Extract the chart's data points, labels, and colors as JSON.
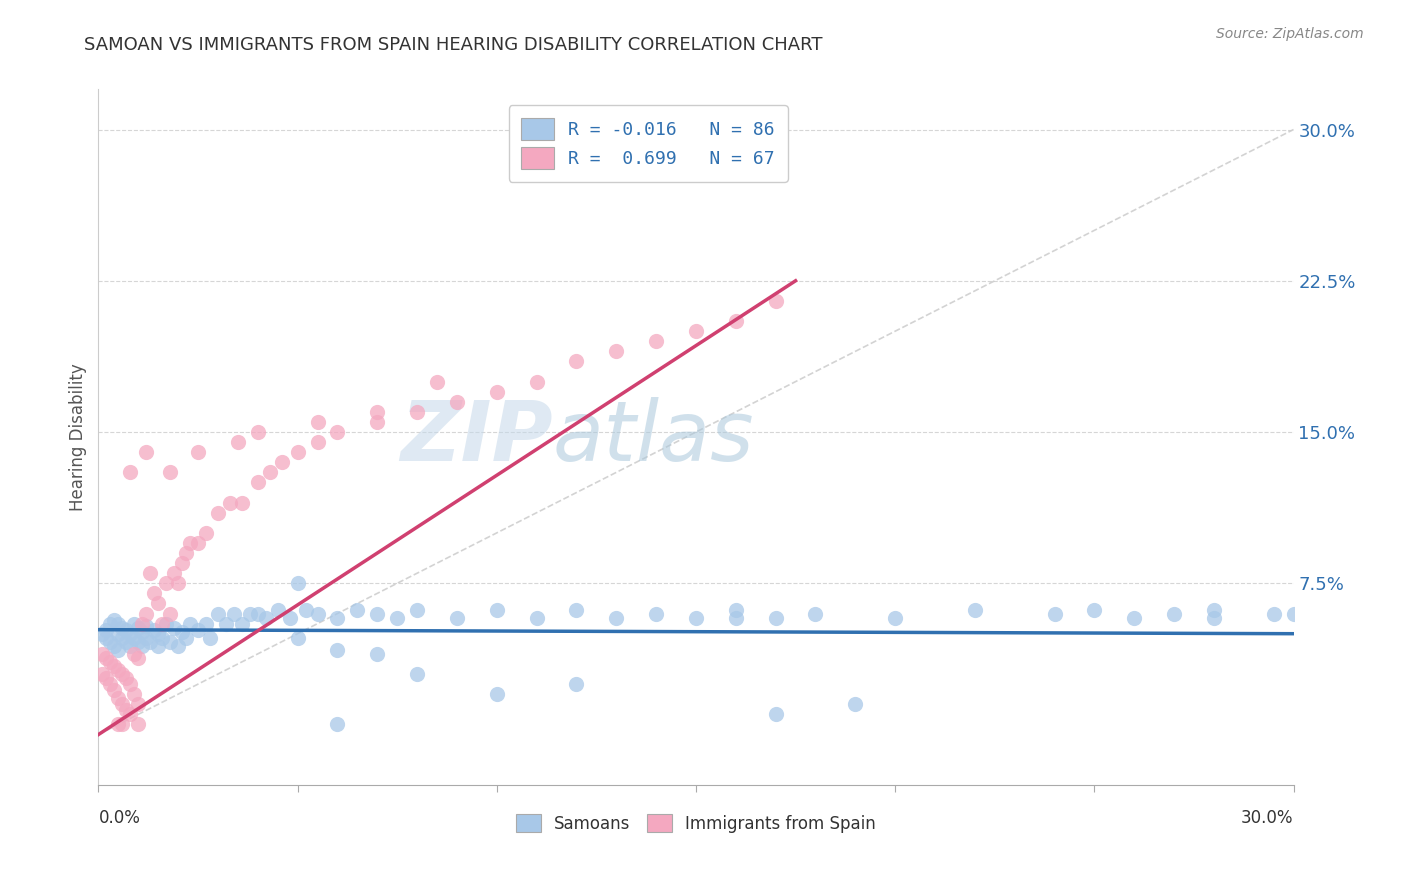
{
  "title": "SAMOAN VS IMMIGRANTS FROM SPAIN HEARING DISABILITY CORRELATION CHART",
  "source": "Source: ZipAtlas.com",
  "ylabel": "Hearing Disability",
  "xmin": 0.0,
  "xmax": 0.3,
  "ymin": -0.025,
  "ymax": 0.32,
  "legend_line1": "R = -0.016   N = 86",
  "legend_line2": "R =  0.699   N = 67",
  "color_blue": "#a8c8e8",
  "color_pink": "#f4a8c0",
  "color_blue_line": "#3070b0",
  "color_pink_line": "#d04070",
  "color_legend_text": "#3070b0",
  "color_dashed": "#c8c8c8",
  "background_color": "#ffffff",
  "watermark_zip": "ZIP",
  "watermark_atlas": "atlas",
  "ytick_positions": [
    0.0,
    0.075,
    0.15,
    0.225,
    0.3
  ],
  "ytick_labels": [
    "",
    "7.5%",
    "15.0%",
    "22.5%",
    "30.0%"
  ],
  "blue_x": [
    0.001,
    0.002,
    0.002,
    0.003,
    0.003,
    0.004,
    0.004,
    0.005,
    0.005,
    0.005,
    0.006,
    0.006,
    0.007,
    0.007,
    0.008,
    0.008,
    0.009,
    0.009,
    0.01,
    0.01,
    0.011,
    0.011,
    0.012,
    0.012,
    0.013,
    0.014,
    0.015,
    0.015,
    0.016,
    0.017,
    0.018,
    0.019,
    0.02,
    0.021,
    0.022,
    0.023,
    0.025,
    0.027,
    0.028,
    0.03,
    0.032,
    0.034,
    0.036,
    0.038,
    0.042,
    0.045,
    0.048,
    0.052,
    0.055,
    0.06,
    0.065,
    0.07,
    0.075,
    0.08,
    0.09,
    0.1,
    0.11,
    0.12,
    0.13,
    0.14,
    0.15,
    0.16,
    0.17,
    0.18,
    0.2,
    0.22,
    0.24,
    0.26,
    0.28,
    0.295,
    0.04,
    0.05,
    0.06,
    0.07,
    0.16,
    0.25,
    0.27,
    0.28,
    0.17,
    0.19,
    0.12,
    0.1,
    0.08,
    0.06,
    0.3,
    0.05
  ],
  "blue_y": [
    0.05,
    0.048,
    0.052,
    0.046,
    0.055,
    0.044,
    0.057,
    0.042,
    0.05,
    0.055,
    0.048,
    0.053,
    0.046,
    0.052,
    0.044,
    0.05,
    0.048,
    0.055,
    0.046,
    0.053,
    0.044,
    0.051,
    0.048,
    0.054,
    0.046,
    0.052,
    0.044,
    0.05,
    0.048,
    0.055,
    0.046,
    0.053,
    0.044,
    0.051,
    0.048,
    0.055,
    0.052,
    0.055,
    0.048,
    0.06,
    0.055,
    0.06,
    0.055,
    0.06,
    0.058,
    0.062,
    0.058,
    0.062,
    0.06,
    0.058,
    0.062,
    0.06,
    0.058,
    0.062,
    0.058,
    0.062,
    0.058,
    0.062,
    0.058,
    0.06,
    0.058,
    0.062,
    0.058,
    0.06,
    0.058,
    0.062,
    0.06,
    0.058,
    0.062,
    0.06,
    0.06,
    0.048,
    0.042,
    0.04,
    0.058,
    0.062,
    0.06,
    0.058,
    0.01,
    0.015,
    0.025,
    0.02,
    0.03,
    0.005,
    0.06,
    0.075
  ],
  "pink_x": [
    0.001,
    0.001,
    0.002,
    0.002,
    0.003,
    0.003,
    0.004,
    0.004,
    0.005,
    0.005,
    0.006,
    0.006,
    0.007,
    0.007,
    0.008,
    0.008,
    0.009,
    0.009,
    0.01,
    0.01,
    0.011,
    0.012,
    0.013,
    0.014,
    0.015,
    0.016,
    0.017,
    0.018,
    0.019,
    0.02,
    0.021,
    0.022,
    0.023,
    0.025,
    0.027,
    0.03,
    0.033,
    0.036,
    0.04,
    0.043,
    0.046,
    0.05,
    0.055,
    0.06,
    0.07,
    0.08,
    0.09,
    0.1,
    0.11,
    0.12,
    0.13,
    0.14,
    0.15,
    0.16,
    0.17,
    0.018,
    0.025,
    0.035,
    0.04,
    0.012,
    0.008,
    0.055,
    0.07,
    0.085,
    0.005,
    0.006,
    0.01
  ],
  "pink_y": [
    0.04,
    0.03,
    0.038,
    0.028,
    0.036,
    0.025,
    0.034,
    0.022,
    0.032,
    0.018,
    0.03,
    0.015,
    0.028,
    0.012,
    0.025,
    0.01,
    0.04,
    0.02,
    0.038,
    0.015,
    0.055,
    0.06,
    0.08,
    0.07,
    0.065,
    0.055,
    0.075,
    0.06,
    0.08,
    0.075,
    0.085,
    0.09,
    0.095,
    0.095,
    0.1,
    0.11,
    0.115,
    0.115,
    0.125,
    0.13,
    0.135,
    0.14,
    0.145,
    0.15,
    0.155,
    0.16,
    0.165,
    0.17,
    0.175,
    0.185,
    0.19,
    0.195,
    0.2,
    0.205,
    0.215,
    0.13,
    0.14,
    0.145,
    0.15,
    0.14,
    0.13,
    0.155,
    0.16,
    0.175,
    0.005,
    0.005,
    0.005
  ],
  "blue_line_x": [
    0.0,
    0.3
  ],
  "blue_line_y": [
    0.052,
    0.05
  ],
  "pink_line_x": [
    0.0,
    0.175
  ],
  "pink_line_y": [
    0.0,
    0.225
  ],
  "dash_line_x": [
    0.0,
    0.3
  ],
  "dash_line_y": [
    0.0,
    0.3
  ]
}
